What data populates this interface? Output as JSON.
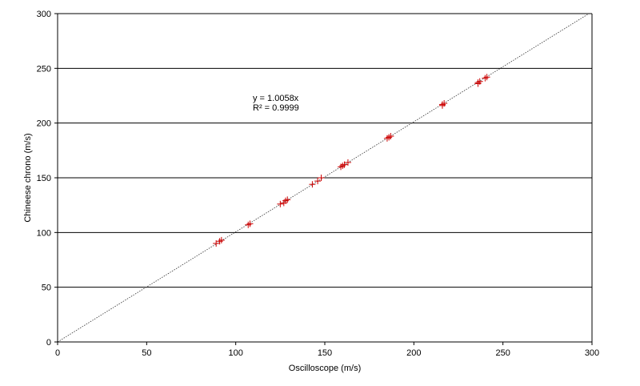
{
  "chart_data": {
    "type": "scatter",
    "title": "",
    "xlabel": "Oscilloscope (m/s)",
    "ylabel": "Chineese chrono (m/s)",
    "xlim": [
      0,
      300
    ],
    "ylim": [
      0,
      300
    ],
    "x_ticks": [
      0,
      50,
      100,
      150,
      200,
      250,
      300
    ],
    "y_ticks": [
      0,
      50,
      100,
      150,
      200,
      250,
      300
    ],
    "grid": "horizontal",
    "legend": "none",
    "marker": "plus",
    "marker_color": "#cc0000",
    "trendline": {
      "type": "linear-through-origin",
      "slope": 1.0058,
      "style": "dotted",
      "color": "#333333",
      "equation": "y = 1.0058x",
      "r_squared": "R² = 0.9999"
    },
    "series": [
      {
        "points": [
          [
            89,
            90
          ],
          [
            91,
            92
          ],
          [
            92,
            93
          ],
          [
            107,
            107
          ],
          [
            108,
            108
          ],
          [
            125,
            126
          ],
          [
            127,
            127
          ],
          [
            128,
            129
          ],
          [
            129,
            130
          ],
          [
            143,
            144
          ],
          [
            146,
            147
          ],
          [
            148,
            150
          ],
          [
            159,
            160
          ],
          [
            160,
            161
          ],
          [
            161,
            162
          ],
          [
            163,
            164
          ],
          [
            185,
            186
          ],
          [
            186,
            187
          ],
          [
            187,
            188
          ],
          [
            216,
            216
          ],
          [
            216,
            217
          ],
          [
            217,
            218
          ],
          [
            236,
            236
          ],
          [
            236,
            237
          ],
          [
            237,
            238
          ],
          [
            240,
            241
          ],
          [
            241,
            242
          ]
        ]
      }
    ]
  }
}
